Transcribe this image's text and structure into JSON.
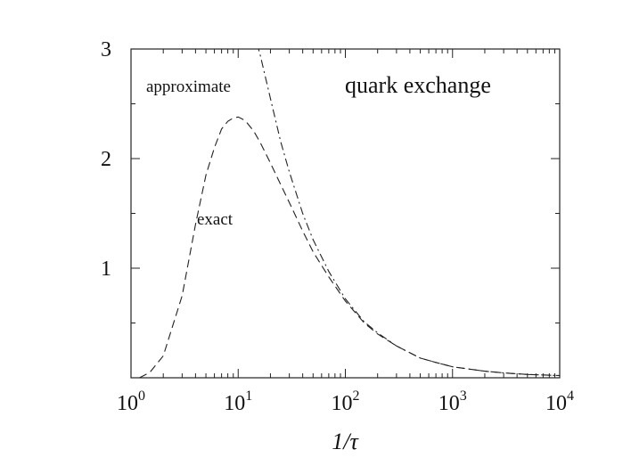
{
  "chart_data": {
    "type": "line",
    "title": "",
    "xlabel": "1/τ",
    "ylabel": "",
    "xscale": "log",
    "xlim": [
      1,
      10000
    ],
    "ylim": [
      0,
      3
    ],
    "grid": false,
    "x_ticks": [
      {
        "value": 1,
        "base": "10",
        "exp": "0"
      },
      {
        "value": 10,
        "base": "10",
        "exp": "1"
      },
      {
        "value": 100,
        "base": "10",
        "exp": "2"
      },
      {
        "value": 1000,
        "base": "10",
        "exp": "3"
      },
      {
        "value": 10000,
        "base": "10",
        "exp": "4"
      }
    ],
    "y_ticks": [
      {
        "value": 1,
        "label": "1"
      },
      {
        "value": 2,
        "label": "2"
      },
      {
        "value": 3,
        "label": "3"
      }
    ],
    "y_minor_step": 0.5,
    "annotations": {
      "panel": "quark exchange",
      "approximate": "approximate",
      "exact": "exact"
    },
    "series": [
      {
        "name": "exact",
        "style": "dashed",
        "color": "#222222",
        "x": [
          1.2,
          1.5,
          2,
          3,
          4,
          5,
          6,
          7,
          8,
          9,
          10,
          11,
          12,
          14,
          16,
          20,
          25,
          30,
          40,
          50,
          70,
          100,
          150,
          200,
          300,
          500,
          700,
          1000,
          2000,
          3000,
          5000,
          10000
        ],
        "y": [
          0.0,
          0.05,
          0.2,
          0.75,
          1.4,
          1.85,
          2.1,
          2.27,
          2.34,
          2.37,
          2.38,
          2.36,
          2.33,
          2.25,
          2.15,
          1.96,
          1.76,
          1.6,
          1.34,
          1.15,
          0.92,
          0.7,
          0.5,
          0.4,
          0.29,
          0.18,
          0.14,
          0.1,
          0.06,
          0.045,
          0.03,
          0.02
        ]
      },
      {
        "name": "approximate",
        "style": "dash-dot",
        "color": "#222222",
        "x": [
          15,
          16,
          20,
          25,
          30,
          40,
          50,
          70,
          100,
          150,
          200,
          300,
          500,
          700,
          1000,
          2000,
          3000,
          5000,
          10000
        ],
        "y": [
          3.05,
          2.95,
          2.55,
          2.15,
          1.88,
          1.5,
          1.26,
          0.97,
          0.72,
          0.51,
          0.41,
          0.29,
          0.18,
          0.14,
          0.1,
          0.06,
          0.045,
          0.03,
          0.02
        ]
      }
    ]
  }
}
